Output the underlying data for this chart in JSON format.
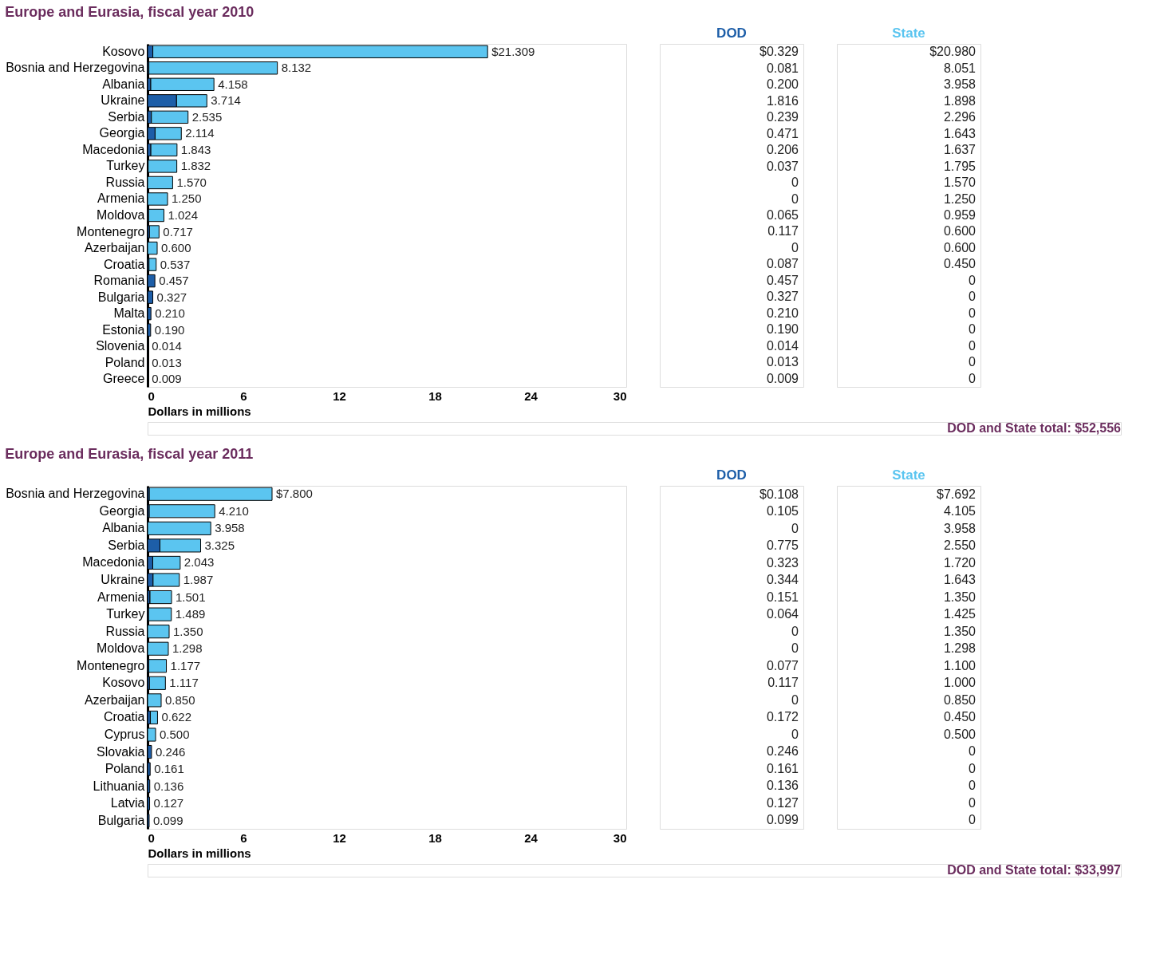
{
  "chart_data": [
    {
      "type": "bar",
      "orientation": "horizontal",
      "stacked": true,
      "title": "Europe and Eurasia, fiscal year 2010",
      "xlabel": "Dollars in millions",
      "xlim": [
        0,
        30
      ],
      "xticks": [
        0,
        6,
        12,
        18,
        24,
        30
      ],
      "categories": [
        "Kosovo",
        "Bosnia and Herzegovina",
        "Albania",
        "Ukraine",
        "Serbia",
        "Georgia",
        "Macedonia",
        "Turkey",
        "Russia",
        "Armenia",
        "Moldova",
        "Montenegro",
        "Azerbaijan",
        "Croatia",
        "Romania",
        "Bulgaria",
        "Malta",
        "Estonia",
        "Slovenia",
        "Poland",
        "Greece"
      ],
      "series": [
        {
          "name": "DOD",
          "color": "#1d5ea8",
          "values": [
            0.329,
            0.081,
            0.2,
            1.816,
            0.239,
            0.471,
            0.206,
            0.037,
            0,
            0,
            0.065,
            0.117,
            0,
            0.087,
            0.457,
            0.327,
            0.21,
            0.19,
            0.014,
            0.013,
            0.009
          ],
          "value_labels": [
            "$0.329",
            "0.081",
            "0.200",
            "1.816",
            "0.239",
            "0.471",
            "0.206",
            "0.037",
            "0",
            "0",
            "0.065",
            "0.117",
            "0",
            "0.087",
            "0.457",
            "0.327",
            "0.210",
            "0.190",
            "0.014",
            "0.013",
            "0.009"
          ]
        },
        {
          "name": "State",
          "color": "#5bc5f0",
          "values": [
            20.98,
            8.051,
            3.958,
            1.898,
            2.296,
            1.643,
            1.637,
            1.795,
            1.57,
            1.25,
            0.959,
            0.6,
            0.6,
            0.45,
            0,
            0,
            0,
            0,
            0,
            0,
            0
          ],
          "value_labels": [
            "$20.980",
            "8.051",
            "3.958",
            "1.898",
            "2.296",
            "1.643",
            "1.637",
            "1.795",
            "1.570",
            "1.250",
            "0.959",
            "0.600",
            "0.600",
            "0.450",
            "0",
            "0",
            "0",
            "0",
            "0",
            "0",
            "0"
          ]
        }
      ],
      "totals": [
        "$21.309",
        "8.132",
        "4.158",
        "3.714",
        "2.535",
        "2.114",
        "1.843",
        "1.832",
        "1.570",
        "1.250",
        "1.024",
        "0.717",
        "0.600",
        "0.537",
        "0.457",
        "0.327",
        "0.210",
        "0.190",
        "0.014",
        "0.013",
        "0.009"
      ],
      "annotations": [
        "DOD and State total: $52,556"
      ]
    },
    {
      "type": "bar",
      "orientation": "horizontal",
      "stacked": true,
      "title": "Europe and Eurasia, fiscal year 2011",
      "xlabel": "Dollars in millions",
      "xlim": [
        0,
        30
      ],
      "xticks": [
        0,
        6,
        12,
        18,
        24,
        30
      ],
      "categories": [
        "Bosnia and Herzegovina",
        "Georgia",
        "Albania",
        "Serbia",
        "Macedonia",
        "Ukraine",
        "Armenia",
        "Turkey",
        "Russia",
        "Moldova",
        "Montenegro",
        "Kosovo",
        "Azerbaijan",
        "Croatia",
        "Cyprus",
        "Slovakia",
        "Poland",
        "Lithuania",
        "Latvia",
        "Bulgaria"
      ],
      "series": [
        {
          "name": "DOD",
          "color": "#1d5ea8",
          "values": [
            0.108,
            0.105,
            0,
            0.775,
            0.323,
            0.344,
            0.151,
            0.064,
            0,
            0,
            0.077,
            0.117,
            0,
            0.172,
            0,
            0.246,
            0.161,
            0.136,
            0.127,
            0.099
          ],
          "value_labels": [
            "$0.108",
            "0.105",
            "0",
            "0.775",
            "0.323",
            "0.344",
            "0.151",
            "0.064",
            "0",
            "0",
            "0.077",
            "0.117",
            "0",
            "0.172",
            "0",
            "0.246",
            "0.161",
            "0.136",
            "0.127",
            "0.099"
          ]
        },
        {
          "name": "State",
          "color": "#5bc5f0",
          "values": [
            7.692,
            4.105,
            3.958,
            2.55,
            1.72,
            1.643,
            1.35,
            1.425,
            1.35,
            1.298,
            1.1,
            1.0,
            0.85,
            0.45,
            0.5,
            0,
            0,
            0,
            0,
            0
          ],
          "value_labels": [
            "$7.692",
            "4.105",
            "3.958",
            "2.550",
            "1.720",
            "1.643",
            "1.350",
            "1.425",
            "1.350",
            "1.298",
            "1.100",
            "1.000",
            "0.850",
            "0.450",
            "0.500",
            "0",
            "0",
            "0",
            "0",
            "0"
          ]
        }
      ],
      "totals": [
        "$7.800",
        "4.210",
        "3.958",
        "3.325",
        "2.043",
        "1.987",
        "1.501",
        "1.489",
        "1.350",
        "1.298",
        "1.177",
        "1.117",
        "0.850",
        "0.622",
        "0.500",
        "0.246",
        "0.161",
        "0.136",
        "0.127",
        "0.099"
      ],
      "annotations": [
        "DOD and State total: $33,997"
      ]
    }
  ]
}
